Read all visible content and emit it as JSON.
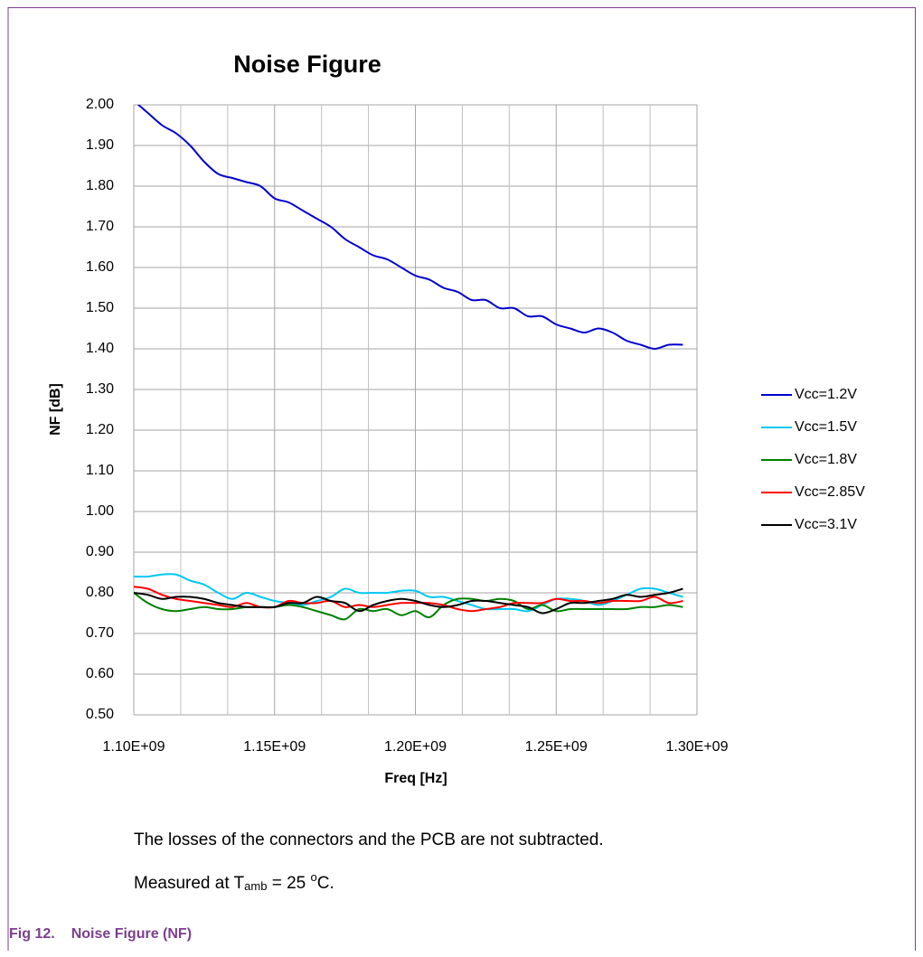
{
  "chart_data": {
    "type": "line",
    "title": "Noise Figure",
    "x_label": "Freq [Hz]",
    "y_label": "NF [dB]",
    "x": [
      1100000000,
      1105000000,
      1110000000,
      1115000000,
      1120000000,
      1125000000,
      1130000000,
      1135000000,
      1140000000,
      1145000000,
      1150000000,
      1155000000,
      1160000000,
      1165000000,
      1170000000,
      1175000000,
      1180000000,
      1185000000,
      1190000000,
      1195000000,
      1200000000,
      1205000000,
      1210000000,
      1215000000,
      1220000000,
      1225000000,
      1230000000,
      1235000000,
      1240000000,
      1245000000,
      1250000000,
      1255000000,
      1260000000,
      1265000000,
      1270000000,
      1275000000,
      1280000000,
      1285000000,
      1290000000,
      1295000000
    ],
    "series": [
      {
        "name": "Vcc=1.2V",
        "color": "#0000cc",
        "values": [
          2.01,
          1.98,
          1.95,
          1.93,
          1.9,
          1.86,
          1.83,
          1.82,
          1.81,
          1.8,
          1.77,
          1.76,
          1.74,
          1.72,
          1.7,
          1.67,
          1.65,
          1.63,
          1.62,
          1.6,
          1.58,
          1.57,
          1.55,
          1.54,
          1.52,
          1.52,
          1.5,
          1.5,
          1.48,
          1.48,
          1.46,
          1.45,
          1.44,
          1.45,
          1.44,
          1.42,
          1.41,
          1.4,
          1.41,
          1.41
        ]
      },
      {
        "name": "Vcc=1.5V",
        "color": "#00c8f0",
        "values": [
          0.84,
          0.84,
          0.845,
          0.845,
          0.83,
          0.82,
          0.8,
          0.785,
          0.8,
          0.79,
          0.78,
          0.775,
          0.77,
          0.78,
          0.79,
          0.81,
          0.8,
          0.8,
          0.8,
          0.805,
          0.805,
          0.79,
          0.79,
          0.78,
          0.77,
          0.76,
          0.76,
          0.76,
          0.755,
          0.77,
          0.785,
          0.785,
          0.78,
          0.77,
          0.78,
          0.795,
          0.81,
          0.81,
          0.8,
          0.79
        ]
      },
      {
        "name": "Vcc=1.8V",
        "color": "#008000",
        "values": [
          0.8,
          0.775,
          0.76,
          0.755,
          0.76,
          0.765,
          0.76,
          0.76,
          0.765,
          0.765,
          0.765,
          0.77,
          0.765,
          0.755,
          0.745,
          0.735,
          0.76,
          0.755,
          0.76,
          0.745,
          0.755,
          0.74,
          0.77,
          0.785,
          0.785,
          0.78,
          0.785,
          0.78,
          0.76,
          0.77,
          0.755,
          0.76,
          0.76,
          0.76,
          0.76,
          0.76,
          0.765,
          0.765,
          0.77,
          0.765
        ]
      },
      {
        "name": "Vcc=2.85V",
        "color": "#ff0000",
        "values": [
          0.815,
          0.81,
          0.795,
          0.785,
          0.78,
          0.775,
          0.77,
          0.765,
          0.775,
          0.765,
          0.765,
          0.78,
          0.775,
          0.775,
          0.78,
          0.765,
          0.77,
          0.765,
          0.77,
          0.775,
          0.775,
          0.775,
          0.77,
          0.76,
          0.755,
          0.76,
          0.765,
          0.775,
          0.775,
          0.775,
          0.785,
          0.78,
          0.78,
          0.775,
          0.78,
          0.78,
          0.78,
          0.79,
          0.775,
          0.78
        ]
      },
      {
        "name": "Vcc=3.1V",
        "color": "#000000",
        "values": [
          0.8,
          0.795,
          0.785,
          0.79,
          0.79,
          0.785,
          0.775,
          0.77,
          0.765,
          0.765,
          0.765,
          0.775,
          0.775,
          0.79,
          0.78,
          0.775,
          0.755,
          0.77,
          0.78,
          0.785,
          0.78,
          0.77,
          0.765,
          0.77,
          0.78,
          0.78,
          0.775,
          0.77,
          0.765,
          0.75,
          0.76,
          0.775,
          0.775,
          0.78,
          0.785,
          0.795,
          0.79,
          0.795,
          0.8,
          0.81
        ]
      }
    ],
    "xlim": [
      1100000000,
      1300000000
    ],
    "xticks": [
      {
        "value": 1100000000,
        "label": "1.10E+09"
      },
      {
        "value": 1150000000,
        "label": "1.15E+09"
      },
      {
        "value": 1200000000,
        "label": "1.20E+09"
      },
      {
        "value": 1250000000,
        "label": "1.25E+09"
      },
      {
        "value": 1300000000,
        "label": "1.30E+09"
      }
    ],
    "x_minor_grid_per_major": 2,
    "ylim": [
      0.5,
      2.0
    ],
    "yticks": [
      {
        "value": 0.5,
        "label": "0.50"
      },
      {
        "value": 0.6,
        "label": "0.60"
      },
      {
        "value": 0.7,
        "label": "0.70"
      },
      {
        "value": 0.8,
        "label": "0.80"
      },
      {
        "value": 0.9,
        "label": "0.90"
      },
      {
        "value": 1.0,
        "label": "1.00"
      },
      {
        "value": 1.1,
        "label": "1.10"
      },
      {
        "value": 1.2,
        "label": "1.20"
      },
      {
        "value": 1.3,
        "label": "1.30"
      },
      {
        "value": 1.4,
        "label": "1.40"
      },
      {
        "value": 1.5,
        "label": "1.50"
      },
      {
        "value": 1.6,
        "label": "1.60"
      },
      {
        "value": 1.7,
        "label": "1.70"
      },
      {
        "value": 1.8,
        "label": "1.80"
      },
      {
        "value": 1.9,
        "label": "1.90"
      },
      {
        "value": 2.0,
        "label": "2.00"
      }
    ],
    "grid": true,
    "legend": "right"
  },
  "notes": {
    "line1": "The losses of the connectors and the PCB are not subtracted.",
    "line2": {
      "before": "Measured at T",
      "subscript": "amb",
      "middle": " = 25 ",
      "superscript": "o",
      "after": "C."
    }
  },
  "caption": {
    "number": "Fig 12.",
    "text": "Noise Figure (NF)"
  }
}
